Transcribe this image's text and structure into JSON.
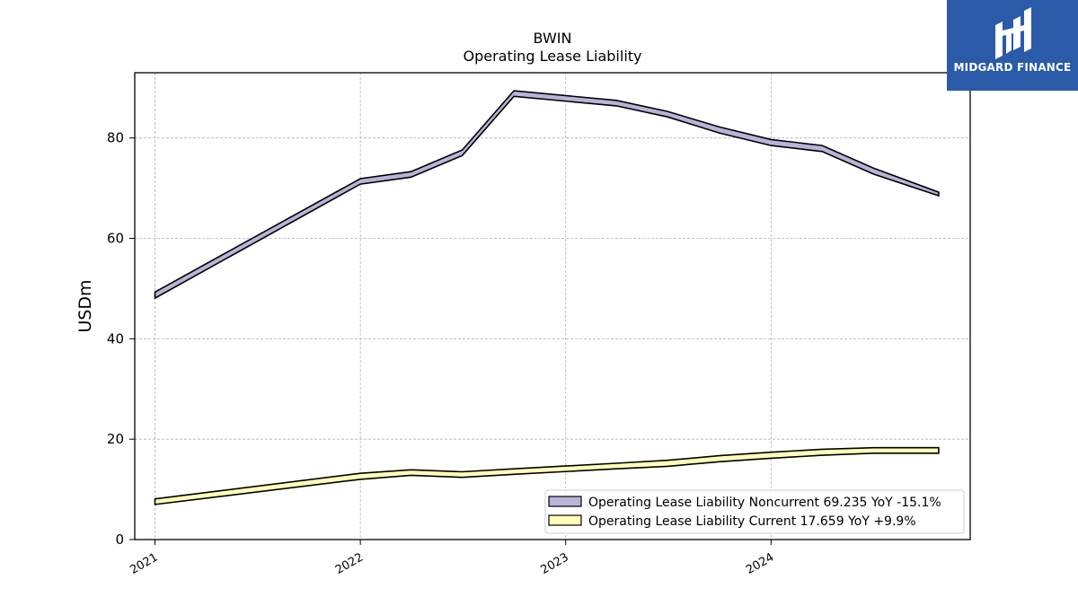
{
  "chart_data": {
    "type": "area",
    "title": "BWIN",
    "subtitle": "Operating Lease Liability",
    "xlabel": "",
    "ylabel": "USDm",
    "ylim": [
      0,
      93
    ],
    "yticks": [
      0,
      20,
      40,
      60,
      80
    ],
    "xticks": [
      "2021",
      "2022",
      "2023",
      "2024"
    ],
    "grid": true,
    "legend_position": "bottom-right",
    "x": [
      "2021-01-01",
      "2022-01-01",
      "2022-04-01",
      "2022-07-01",
      "2022-10-01",
      "2023-04-01",
      "2023-07-01",
      "2023-10-01",
      "2024-01-01",
      "2024-04-01",
      "2024-07-01",
      "2024-10-25"
    ],
    "series": [
      {
        "name": "Operating Lease Liability Noncurrent",
        "legend_label": "Operating Lease Liability Noncurrent  69.235 YoY -15.1%",
        "color": "#b8b3d8",
        "upper": [
          49.3,
          71.9,
          73.3,
          77.6,
          89.4,
          87.5,
          85.3,
          82.2,
          79.7,
          78.5,
          74.0,
          69.2
        ],
        "lower": [
          48.1,
          70.8,
          72.2,
          76.5,
          88.3,
          86.4,
          84.2,
          81.0,
          78.5,
          77.3,
          72.8,
          68.5
        ]
      },
      {
        "name": "Operating Lease Liability Current",
        "legend_label": "Operating Lease Liability Current  17.659 YoY +9.9%",
        "color": "#ffffb8",
        "upper": [
          8.1,
          13.2,
          13.9,
          13.5,
          14.1,
          15.2,
          15.8,
          16.7,
          17.4,
          18.0,
          18.3,
          18.3
        ],
        "lower": [
          7.0,
          12.0,
          12.8,
          12.4,
          13.0,
          14.1,
          14.6,
          15.5,
          16.2,
          16.8,
          17.2,
          17.2
        ]
      }
    ]
  },
  "branding": {
    "logo_text": "MIDGARD FINANCE"
  }
}
